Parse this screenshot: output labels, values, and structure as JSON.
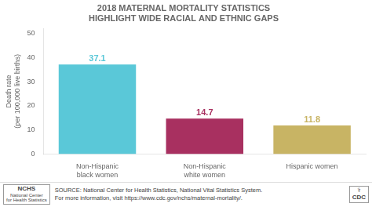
{
  "chart_data": {
    "type": "bar",
    "title": "2018 MATERNAL MORTALITY STATISTICS\nHIGHLIGHT WIDE RACIAL AND ETHNIC GAPS",
    "categories": [
      "Non-Hispanic\nblack women",
      "Non-Hispanic\nwhite women",
      "Hispanic women"
    ],
    "values": [
      37.1,
      14.7,
      11.8
    ],
    "colors": [
      "#5ac8d8",
      "#a83060",
      "#c8b464"
    ],
    "ylabel": "Death rate\n(per 100,000 live births)",
    "ylim": [
      0,
      52
    ],
    "yticks": [
      0,
      10,
      20,
      30,
      40,
      50
    ],
    "grid": false,
    "data_labels": true,
    "annotations": [
      "NCHS",
      "National Center\nfor Health Statistics",
      "SOURCE: National Center for Health Statistics, National Vital Statistics System.",
      "For more information, visit https://www.cdc.gov/nchs/maternal-mortality/.",
      "⚕",
      "CDC"
    ]
  }
}
